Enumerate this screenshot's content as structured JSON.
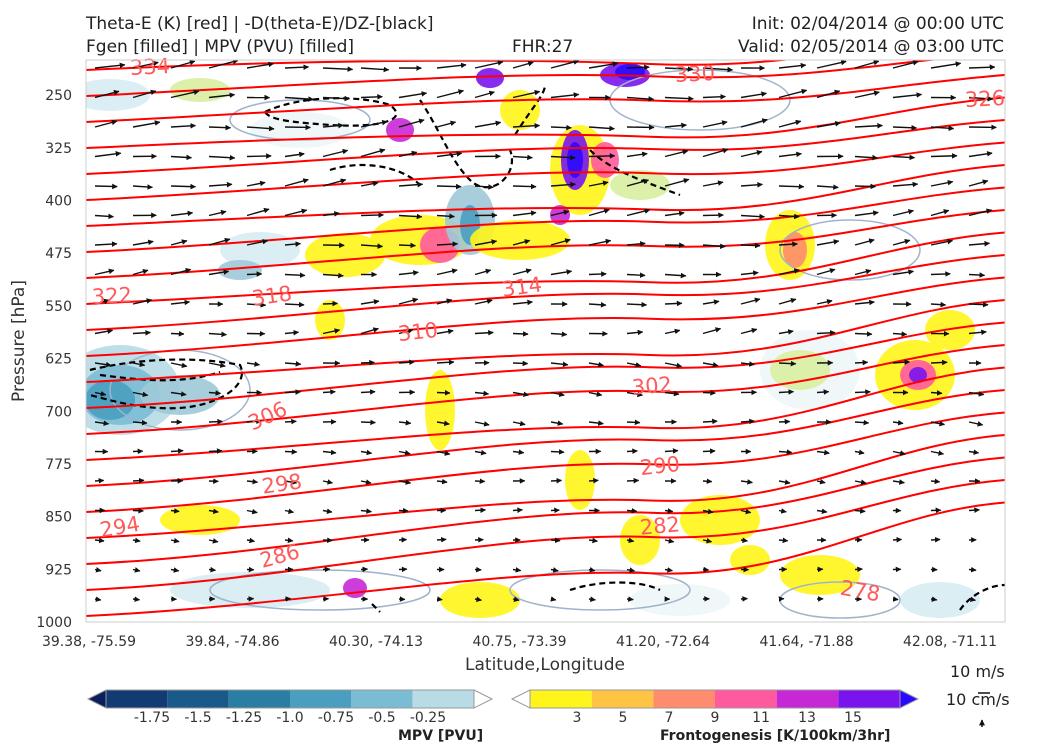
{
  "header": {
    "title_left_line1": "Theta-E (K) [red] | -D(theta-E)/DZ-[black]",
    "title_left_line2": "Fgen [filled] | MPV (PVU) [filled]",
    "fhr": "FHR:27",
    "init": "Init: 02/04/2014 @ 00:00 UTC",
    "valid": "Valid: 02/05/2014 @ 03:00 UTC"
  },
  "chart_data": {
    "type": "contour",
    "xlabel": "Latitude,Longitude",
    "ylabel": "Pressure [hPa]",
    "x_ticks": [
      "39.38, -75.59",
      "39.84, -74.86",
      "40.30, -74.13",
      "40.75, -73.39",
      "41.20, -72.64",
      "41.64, -71.88",
      "42.08, -71.11"
    ],
    "y_ticks": [
      250,
      325,
      400,
      475,
      550,
      625,
      700,
      775,
      850,
      925,
      1000
    ],
    "ylim": [
      1000,
      200
    ],
    "theta_e_contour_labels": [
      "334",
      "330",
      "326",
      "322",
      "318",
      "314",
      "310",
      "306",
      "302",
      "298",
      "294",
      "290",
      "286",
      "282",
      "278"
    ],
    "theta_e_color": "#ff0000",
    "theta_e_label_color": "#ff5a5a",
    "dthetae_dz_color": "#000000",
    "mpv_colorbar": {
      "label": "MPV [PVU]",
      "ticks": [
        "-1.75",
        "-1.5",
        "-1.25",
        "-1.0",
        "-0.75",
        "-0.5",
        "-0.25"
      ],
      "colors": [
        "#0a1f5c",
        "#123a73",
        "#1a5a8a",
        "#2a7ea3",
        "#4a9ec0",
        "#7bbcd5",
        "#b8dbe6",
        "#ffffff"
      ]
    },
    "fgen_colorbar": {
      "label": "Frontogenesis [K/100km/3hr]",
      "ticks": [
        "3",
        "5",
        "7",
        "9",
        "11",
        "13",
        "15"
      ],
      "colors": [
        "#ffffff",
        "#fff51a",
        "#ffc444",
        "#ff8c6e",
        "#ff5aa0",
        "#c628d6",
        "#7a14ee",
        "#2a0aff"
      ]
    }
  },
  "reference_vectors": {
    "horizontal": "10 m/s",
    "vertical": "10 cm/s"
  }
}
